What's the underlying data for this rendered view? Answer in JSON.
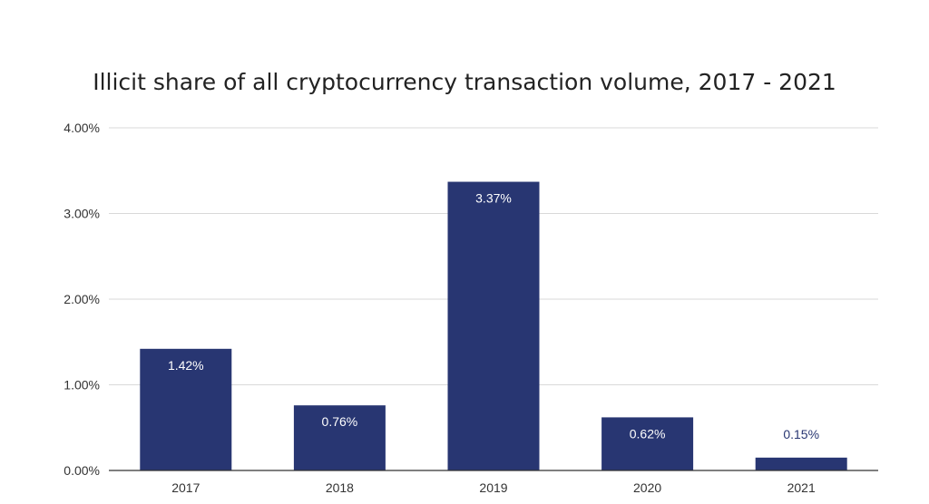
{
  "chart_data": {
    "type": "bar",
    "title": "Illicit share of all cryptocurrency transaction volume, 2017 - 2021",
    "categories": [
      "2017",
      "2018",
      "2019",
      "2020",
      "2021"
    ],
    "values": [
      1.42,
      0.76,
      3.37,
      0.62,
      0.15
    ],
    "data_labels": [
      "1.42%",
      "0.76%",
      "3.37%",
      "0.62%",
      "0.15%"
    ],
    "y_ticks": [
      "0.00%",
      "1.00%",
      "2.00%",
      "3.00%",
      "4.00%"
    ],
    "ylim": [
      0,
      4
    ],
    "grid": true,
    "bar_color": "#283672",
    "inside_label_color": "#ffffff",
    "outside_label_color": "#283672"
  }
}
